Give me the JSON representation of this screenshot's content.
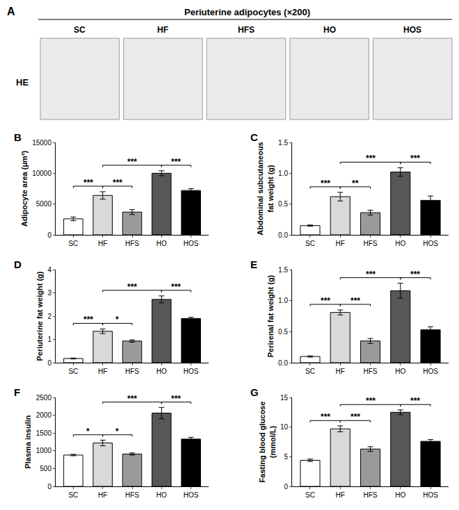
{
  "panel_a": {
    "panel": "A",
    "title": "Periuterine adipocytes (×200)",
    "row_label": "HE",
    "columns": [
      "SC",
      "HF",
      "HFS",
      "HO",
      "HOS"
    ]
  },
  "chart_data": [
    {
      "panel": "B",
      "type": "bar",
      "y_label": "Adipocyte area (μm²)",
      "categories": [
        "SC",
        "HF",
        "HFS",
        "HO",
        "HOS"
      ],
      "values": [
        2600,
        6400,
        3700,
        10000,
        7200
      ],
      "errors": [
        300,
        600,
        400,
        400,
        300
      ],
      "colors": [
        "#ffffff",
        "#d9d9d9",
        "#9a9a9a",
        "#575757",
        "#000000"
      ],
      "ylim": [
        0,
        15000
      ],
      "yticks": [
        0,
        5000,
        10000,
        15000
      ],
      "grid": false,
      "brackets": [
        {
          "from": "SC",
          "to": "HF",
          "label": "***"
        },
        {
          "from": "HF",
          "to": "HFS",
          "label": "***"
        },
        {
          "from": "HF",
          "to": "HO",
          "label": "***"
        },
        {
          "from": "HO",
          "to": "HOS",
          "label": "***"
        }
      ]
    },
    {
      "panel": "C",
      "type": "bar",
      "y_label": "Abdominal subcutaneous\nfat weight (g)",
      "categories": [
        "SC",
        "HF",
        "HFS",
        "HO",
        "HOS"
      ],
      "values": [
        0.15,
        0.62,
        0.36,
        1.02,
        0.56
      ],
      "errors": [
        0.01,
        0.07,
        0.04,
        0.07,
        0.07
      ],
      "colors": [
        "#ffffff",
        "#d9d9d9",
        "#9a9a9a",
        "#575757",
        "#000000"
      ],
      "ylim": [
        0,
        1.5
      ],
      "yticks": [
        {
          "value": 0,
          "label": "0.0"
        },
        0.5,
        {
          "value": 1,
          "label": "1.0"
        },
        1.5
      ],
      "grid": false,
      "brackets": [
        {
          "from": "SC",
          "to": "HF",
          "label": "***"
        },
        {
          "from": "HF",
          "to": "HFS",
          "label": "**"
        },
        {
          "from": "HF",
          "to": "HO",
          "label": "***"
        },
        {
          "from": "HO",
          "to": "HOS",
          "label": "***"
        }
      ]
    },
    {
      "panel": "D",
      "type": "bar",
      "y_label": "Periuterine fat weight (g)",
      "categories": [
        "SC",
        "HF",
        "HFS",
        "HO",
        "HOS"
      ],
      "values": [
        0.18,
        1.35,
        0.93,
        2.72,
        1.9
      ],
      "errors": [
        0.02,
        0.1,
        0.05,
        0.15,
        0.05
      ],
      "colors": [
        "#ffffff",
        "#d9d9d9",
        "#9a9a9a",
        "#575757",
        "#000000"
      ],
      "ylim": [
        0,
        4
      ],
      "yticks": [
        0,
        1,
        2,
        3,
        4
      ],
      "grid": false,
      "brackets": [
        {
          "from": "SC",
          "to": "HF",
          "label": "***"
        },
        {
          "from": "HF",
          "to": "HFS",
          "label": "*"
        },
        {
          "from": "HF",
          "to": "HO",
          "label": "***"
        },
        {
          "from": "HO",
          "to": "HOS",
          "label": "***"
        }
      ]
    },
    {
      "panel": "E",
      "type": "bar",
      "y_label": "Perirenal fat weight (g)",
      "categories": [
        "SC",
        "HF",
        "HFS",
        "HO",
        "HOS"
      ],
      "values": [
        0.1,
        0.81,
        0.35,
        1.16,
        0.53
      ],
      "errors": [
        0.01,
        0.04,
        0.04,
        0.12,
        0.05
      ],
      "colors": [
        "#ffffff",
        "#d9d9d9",
        "#9a9a9a",
        "#575757",
        "#000000"
      ],
      "ylim": [
        0,
        1.5
      ],
      "yticks": [
        {
          "value": 0,
          "label": "0.0"
        },
        0.5,
        {
          "value": 1,
          "label": "1.0"
        },
        1.5
      ],
      "grid": false,
      "brackets": [
        {
          "from": "SC",
          "to": "HF",
          "label": "***"
        },
        {
          "from": "HF",
          "to": "HFS",
          "label": "***"
        },
        {
          "from": "HF",
          "to": "HO",
          "label": "***"
        },
        {
          "from": "HO",
          "to": "HOS",
          "label": "***"
        }
      ]
    },
    {
      "panel": "F",
      "type": "bar",
      "y_label": "Plasma insulin",
      "categories": [
        "SC",
        "HF",
        "HFS",
        "HO",
        "HOS"
      ],
      "values": [
        880,
        1220,
        910,
        2060,
        1330
      ],
      "errors": [
        20,
        80,
        30,
        160,
        50
      ],
      "colors": [
        "#ffffff",
        "#d9d9d9",
        "#9a9a9a",
        "#575757",
        "#000000"
      ],
      "ylim": [
        0,
        2500
      ],
      "yticks": [
        0,
        500,
        1000,
        1500,
        2000,
        2500
      ],
      "grid": false,
      "brackets": [
        {
          "from": "SC",
          "to": "HF",
          "label": "*"
        },
        {
          "from": "HF",
          "to": "HFS",
          "label": "*"
        },
        {
          "from": "HF",
          "to": "HO",
          "label": "***"
        },
        {
          "from": "HO",
          "to": "HOS",
          "label": "***"
        }
      ]
    },
    {
      "panel": "G",
      "type": "bar",
      "y_label": "Fasting blood glucose\n(mmol/L)",
      "categories": [
        "SC",
        "HF",
        "HFS",
        "HO",
        "HOS"
      ],
      "values": [
        4.4,
        9.7,
        6.3,
        12.5,
        7.6
      ],
      "errors": [
        0.2,
        0.5,
        0.4,
        0.4,
        0.3
      ],
      "colors": [
        "#ffffff",
        "#d9d9d9",
        "#9a9a9a",
        "#575757",
        "#000000"
      ],
      "ylim": [
        0,
        15
      ],
      "yticks": [
        0,
        5,
        10,
        15
      ],
      "grid": false,
      "brackets": [
        {
          "from": "SC",
          "to": "HF",
          "label": "***"
        },
        {
          "from": "HF",
          "to": "HFS",
          "label": "***"
        },
        {
          "from": "HF",
          "to": "HO",
          "label": "***"
        },
        {
          "from": "HO",
          "to": "HOS",
          "label": "***"
        }
      ]
    }
  ]
}
